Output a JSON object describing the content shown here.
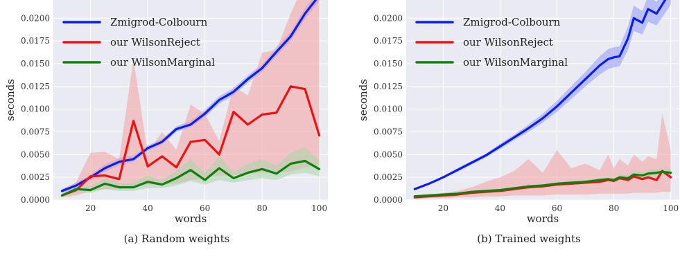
{
  "chart_data": [
    {
      "type": "line",
      "caption": "(a) Random weights",
      "xlabel": "words",
      "ylabel": "seconds",
      "xlim": [
        7,
        103
      ],
      "ylim": [
        0,
        0.022
      ],
      "xticks": [
        20,
        40,
        60,
        80,
        100
      ],
      "yticks": [
        0.0,
        0.0025,
        0.005,
        0.0075,
        0.01,
        0.0125,
        0.015,
        0.0175,
        0.02
      ],
      "ytick_labels": [
        "0.0000",
        "0.0025",
        "0.0050",
        "0.0075",
        "0.0100",
        "0.0125",
        "0.0150",
        "0.0175",
        "0.0200"
      ],
      "grid": true,
      "legend_position": "top-left",
      "x": [
        10,
        15,
        20,
        25,
        30,
        35,
        40,
        45,
        50,
        55,
        60,
        65,
        70,
        75,
        80,
        85,
        90,
        95,
        100
      ],
      "series": [
        {
          "name": "Zmigrod-Colbourn",
          "color": "#0b1ef0",
          "band_color": "#8f99f5",
          "values": [
            0.001,
            0.0016,
            0.0025,
            0.0035,
            0.0042,
            0.0045,
            0.0057,
            0.0064,
            0.0078,
            0.0083,
            0.0095,
            0.011,
            0.0119,
            0.0133,
            0.0145,
            0.0163,
            0.018,
            0.0205,
            0.0225
          ],
          "lower": [
            0.0008,
            0.0013,
            0.0022,
            0.0031,
            0.0038,
            0.0042,
            0.0054,
            0.0061,
            0.0075,
            0.008,
            0.0091,
            0.0106,
            0.0115,
            0.0129,
            0.0141,
            0.0158,
            0.0175,
            0.0199,
            0.0219
          ],
          "upper": [
            0.0012,
            0.0019,
            0.0028,
            0.0039,
            0.0046,
            0.0049,
            0.006,
            0.0067,
            0.0081,
            0.0087,
            0.0099,
            0.0114,
            0.0123,
            0.0137,
            0.0149,
            0.0168,
            0.0185,
            0.0211,
            0.0231
          ]
        },
        {
          "name": "our WilsonReject",
          "color": "#ee1111",
          "band_color": "#f3a3a3",
          "values": [
            0.0005,
            0.0011,
            0.0026,
            0.0027,
            0.0023,
            0.0087,
            0.0037,
            0.0048,
            0.0036,
            0.0064,
            0.0066,
            0.005,
            0.0097,
            0.0083,
            0.0094,
            0.0096,
            0.0125,
            0.0122,
            0.0071
          ],
          "lower": [
            0.0003,
            0.0005,
            0.001,
            0.0012,
            0.0012,
            0.0014,
            0.0017,
            0.0017,
            0.0018,
            0.0022,
            0.0024,
            0.0027,
            0.0027,
            0.0029,
            0.003,
            0.0031,
            0.0031,
            0.0036,
            0.0038
          ],
          "upper": [
            0.0008,
            0.002,
            0.0052,
            0.0053,
            0.0045,
            0.0155,
            0.0052,
            0.0075,
            0.0055,
            0.0105,
            0.0095,
            0.0065,
            0.0125,
            0.0115,
            0.0162,
            0.0165,
            0.0205,
            0.024,
            0.024
          ]
        },
        {
          "name": "our WilsonMarginal",
          "color": "#0f7f0f",
          "band_color": "#a9d6a9",
          "values": [
            0.0005,
            0.0012,
            0.0011,
            0.0018,
            0.0014,
            0.0014,
            0.002,
            0.0017,
            0.0024,
            0.0033,
            0.0022,
            0.0035,
            0.0024,
            0.003,
            0.0034,
            0.0029,
            0.004,
            0.0043,
            0.0034
          ],
          "lower": [
            0.0004,
            0.0008,
            0.0008,
            0.0012,
            0.001,
            0.001,
            0.0013,
            0.0013,
            0.0016,
            0.0021,
            0.0017,
            0.0022,
            0.0019,
            0.0022,
            0.0024,
            0.0022,
            0.0028,
            0.003,
            0.0026
          ],
          "upper": [
            0.0006,
            0.0016,
            0.0015,
            0.0024,
            0.0019,
            0.0019,
            0.0027,
            0.0022,
            0.0032,
            0.0045,
            0.003,
            0.0048,
            0.0031,
            0.004,
            0.0045,
            0.0038,
            0.0052,
            0.0058,
            0.0044
          ]
        }
      ]
    },
    {
      "type": "line",
      "caption": "(b) Trained weights",
      "xlabel": "words",
      "ylabel": "seconds",
      "xlim": [
        7,
        103
      ],
      "ylim": [
        0,
        0.022
      ],
      "xticks": [
        20,
        40,
        60,
        80,
        100
      ],
      "yticks": [
        0.0,
        0.0025,
        0.005,
        0.0075,
        0.01,
        0.0125,
        0.015,
        0.0175,
        0.02
      ],
      "ytick_labels": [
        "0.0000",
        "0.0025",
        "0.0050",
        "0.0075",
        "0.0100",
        "0.0125",
        "0.0150",
        "0.0175",
        "0.0200"
      ],
      "grid": true,
      "legend_position": "top-left",
      "x": [
        10,
        15,
        20,
        25,
        30,
        35,
        40,
        45,
        50,
        55,
        60,
        65,
        70,
        75,
        78,
        80,
        82,
        85,
        87,
        90,
        92,
        95,
        97,
        100
      ],
      "series": [
        {
          "name": "Zmigrod-Colbourn",
          "color": "#0b1ef0",
          "band_color": "#8f99f5",
          "values": [
            0.0012,
            0.0018,
            0.0025,
            0.0033,
            0.0041,
            0.0049,
            0.0059,
            0.0069,
            0.0079,
            0.009,
            0.0103,
            0.0118,
            0.0133,
            0.0148,
            0.0155,
            0.0157,
            0.0158,
            0.0178,
            0.02,
            0.0195,
            0.021,
            0.0205,
            0.0215,
            0.023
          ],
          "lower": [
            0.0011,
            0.0017,
            0.0024,
            0.0031,
            0.0039,
            0.0047,
            0.0056,
            0.0066,
            0.0075,
            0.0085,
            0.0097,
            0.0111,
            0.0125,
            0.0138,
            0.0144,
            0.0146,
            0.0147,
            0.0165,
            0.0186,
            0.0182,
            0.0196,
            0.0192,
            0.0201,
            0.0215
          ],
          "upper": [
            0.0013,
            0.0019,
            0.0026,
            0.0035,
            0.0043,
            0.0051,
            0.0062,
            0.0072,
            0.0083,
            0.0095,
            0.0109,
            0.0125,
            0.0141,
            0.0158,
            0.0166,
            0.0168,
            0.0169,
            0.0191,
            0.0214,
            0.0208,
            0.0224,
            0.0218,
            0.0229,
            0.0245
          ]
        },
        {
          "name": "our WilsonReject",
          "color": "#ee1111",
          "band_color": "#f3a3a3",
          "values": [
            0.0003,
            0.0004,
            0.0005,
            0.0006,
            0.0008,
            0.0009,
            0.001,
            0.0012,
            0.0014,
            0.0015,
            0.0017,
            0.0018,
            0.0019,
            0.002,
            0.0022,
            0.0021,
            0.0024,
            0.0022,
            0.0026,
            0.0023,
            0.0025,
            0.0022,
            0.0032,
            0.0025
          ],
          "lower": [
            0.0001,
            0.0002,
            0.0002,
            0.0003,
            0.0003,
            0.0004,
            0.0004,
            0.0005,
            0.0005,
            0.0005,
            0.0006,
            0.0006,
            0.0006,
            0.0007,
            0.0007,
            0.0007,
            0.0007,
            0.0007,
            0.0008,
            0.0008,
            0.0008,
            0.0008,
            0.0009,
            0.0009
          ],
          "upper": [
            0.0005,
            0.0006,
            0.0008,
            0.001,
            0.0014,
            0.002,
            0.0025,
            0.0032,
            0.0045,
            0.003,
            0.0055,
            0.0035,
            0.004,
            0.0033,
            0.005,
            0.0035,
            0.0045,
            0.0038,
            0.005,
            0.0042,
            0.0048,
            0.0045,
            0.0095,
            0.0055
          ]
        },
        {
          "name": "our WilsonMarginal",
          "color": "#0f7f0f",
          "band_color": "#a9d6a9",
          "values": [
            0.0004,
            0.0005,
            0.0006,
            0.0007,
            0.0009,
            0.001,
            0.0011,
            0.0013,
            0.0015,
            0.0016,
            0.0018,
            0.0019,
            0.002,
            0.0022,
            0.0023,
            0.0022,
            0.0025,
            0.0024,
            0.0028,
            0.0027,
            0.0029,
            0.003,
            0.0031,
            0.003
          ],
          "lower": [
            0.00035,
            0.00045,
            0.00055,
            0.00065,
            0.0008,
            0.0009,
            0.001,
            0.0012,
            0.0014,
            0.0015,
            0.0016,
            0.0017,
            0.0018,
            0.002,
            0.0021,
            0.002,
            0.0022,
            0.0021,
            0.0024,
            0.0023,
            0.0025,
            0.0026,
            0.0027,
            0.0026
          ],
          "upper": [
            0.00045,
            0.00055,
            0.00065,
            0.00075,
            0.001,
            0.0011,
            0.0012,
            0.0014,
            0.0016,
            0.0017,
            0.002,
            0.0021,
            0.0022,
            0.0024,
            0.0025,
            0.0024,
            0.0028,
            0.0027,
            0.0032,
            0.0031,
            0.0033,
            0.0034,
            0.0035,
            0.0034
          ]
        }
      ]
    }
  ]
}
